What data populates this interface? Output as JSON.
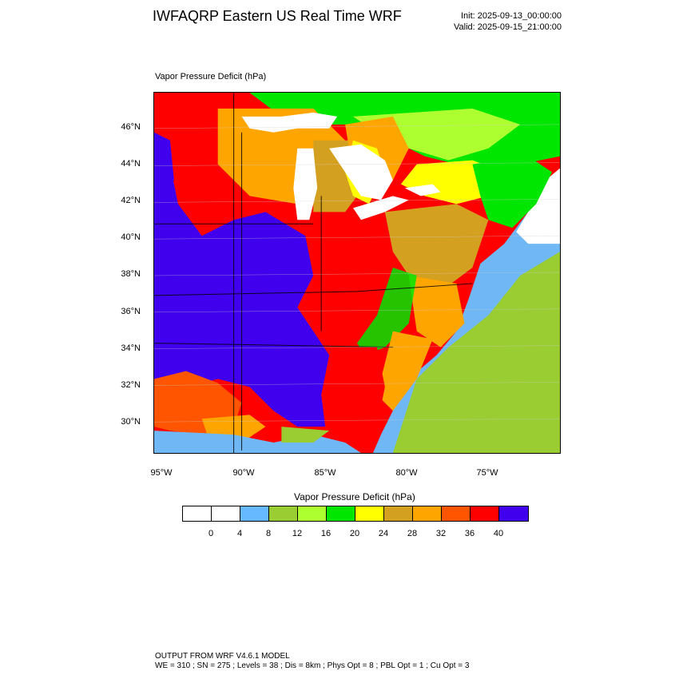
{
  "header": {
    "title": "IWFAQRP Eastern US Real Time WRF",
    "init": "Init: 2025-09-13_00:00:00",
    "valid": "Valid: 2025-09-15_21:00:00"
  },
  "map": {
    "variable_label": "Vapor Pressure Deficit   (hPa)",
    "lat_labels": [
      "46°N",
      "44°N",
      "42°N",
      "40°N",
      "38°N",
      "36°N",
      "34°N",
      "32°N",
      "30°N"
    ],
    "lon_labels": [
      "95°W",
      "90°W",
      "85°W",
      "80°W",
      "75°W"
    ]
  },
  "colorbar": {
    "title": "Vapor Pressure Deficit  (hPa)",
    "colors": [
      "#ffffff",
      "#ffffff",
      "#66b8ff",
      "#9acd32",
      "#adff2f",
      "#00e600",
      "#ffff00",
      "#d4a020",
      "#ffa500",
      "#ff5500",
      "#ff0000",
      "#4000ee"
    ],
    "ticks": [
      "0",
      "4",
      "8",
      "12",
      "16",
      "20",
      "24",
      "28",
      "32",
      "36",
      "40"
    ]
  },
  "footer": {
    "line1": "OUTPUT FROM WRF V4.6.1 MODEL",
    "line2": "WE = 310 ; SN = 275 ; Levels = 38 ; Dis = 8km ; Phys Opt = 8 ; PBL Opt = 1 ; Cu Opt = 3"
  }
}
